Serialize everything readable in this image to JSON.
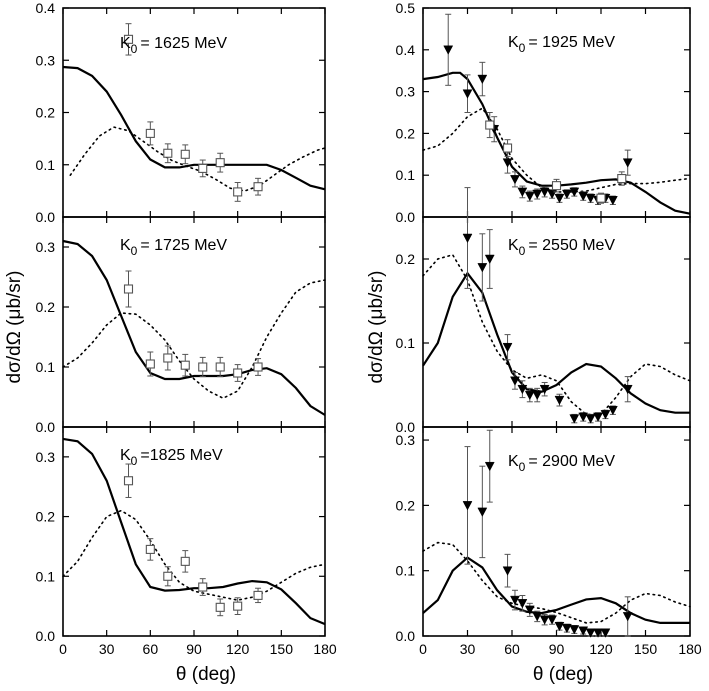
{
  "chart_data": [
    {
      "type": "scatter",
      "label": "K",
      "label_sub": "0",
      "label_value": "= 1625 MeV",
      "ylim": [
        0,
        0.4
      ],
      "yticks": [
        "0.0",
        "0.1",
        "0.2",
        "0.3",
        "0.4"
      ],
      "xlim": [
        0,
        180
      ],
      "xticks": [],
      "series": [
        {
          "name": "model (solid)",
          "style": "solid",
          "x": [
            0,
            10,
            20,
            30,
            40,
            50,
            60,
            70,
            80,
            90,
            100,
            110,
            120,
            130,
            140,
            150,
            160,
            170,
            180
          ],
          "y": [
            0.287,
            0.285,
            0.27,
            0.24,
            0.195,
            0.145,
            0.11,
            0.095,
            0.095,
            0.1,
            0.1,
            0.1,
            0.1,
            0.1,
            0.1,
            0.09,
            0.075,
            0.06,
            0.053
          ]
        },
        {
          "name": "model (dotted)",
          "style": "dotted",
          "x": [
            5,
            15,
            25,
            35,
            45,
            55,
            65,
            75,
            85,
            95,
            105,
            115,
            125,
            135,
            145,
            155,
            165,
            175,
            180
          ],
          "y": [
            0.08,
            0.12,
            0.155,
            0.172,
            0.165,
            0.145,
            0.125,
            0.108,
            0.097,
            0.087,
            0.072,
            0.055,
            0.05,
            0.06,
            0.08,
            0.1,
            0.115,
            0.128,
            0.132
          ]
        },
        {
          "name": "data (open squares)",
          "marker": "square",
          "x": [
            45,
            60,
            72,
            84,
            96,
            108,
            120,
            134
          ],
          "y": [
            0.34,
            0.16,
            0.122,
            0.12,
            0.093,
            0.104,
            0.048,
            0.058
          ],
          "err": [
            0.03,
            0.022,
            0.018,
            0.018,
            0.016,
            0.018,
            0.018,
            0.016
          ]
        }
      ]
    },
    {
      "type": "scatter",
      "label": "K",
      "label_sub": "0",
      "label_value": "= 1725 MeV",
      "ylim": [
        0,
        0.35
      ],
      "yticks": [
        "0.0",
        "0.1",
        "0.2",
        "0.3"
      ],
      "xlim": [
        0,
        180
      ],
      "xticks": [],
      "series": [
        {
          "name": "model (solid)",
          "style": "solid",
          "x": [
            0,
            10,
            20,
            30,
            40,
            50,
            60,
            70,
            80,
            90,
            100,
            110,
            120,
            130,
            140,
            150,
            160,
            170,
            180
          ],
          "y": [
            0.31,
            0.305,
            0.285,
            0.245,
            0.185,
            0.125,
            0.09,
            0.08,
            0.08,
            0.085,
            0.085,
            0.085,
            0.088,
            0.095,
            0.098,
            0.088,
            0.065,
            0.035,
            0.02
          ]
        },
        {
          "name": "model (dotted)",
          "style": "dotted",
          "x": [
            0,
            10,
            20,
            30,
            40,
            50,
            60,
            70,
            80,
            90,
            100,
            110,
            120,
            130,
            140,
            150,
            160,
            170,
            180
          ],
          "y": [
            0.1,
            0.115,
            0.14,
            0.17,
            0.19,
            0.188,
            0.17,
            0.145,
            0.11,
            0.08,
            0.06,
            0.048,
            0.06,
            0.1,
            0.15,
            0.19,
            0.225,
            0.24,
            0.245
          ]
        },
        {
          "name": "data (open squares)",
          "marker": "square",
          "x": [
            45,
            60,
            72,
            84,
            96,
            108,
            120,
            134
          ],
          "y": [
            0.23,
            0.105,
            0.115,
            0.103,
            0.1,
            0.1,
            0.09,
            0.1
          ],
          "err": [
            0.03,
            0.02,
            0.02,
            0.018,
            0.016,
            0.016,
            0.014,
            0.014
          ]
        }
      ]
    },
    {
      "type": "scatter",
      "label": "K",
      "label_sub": "0",
      "label_value": "=1825 MeV",
      "ylim": [
        0,
        0.35
      ],
      "yticks": [
        "0.0",
        "0.1",
        "0.2",
        "0.3"
      ],
      "xlim": [
        0,
        180
      ],
      "xticks": [
        "0",
        "30",
        "60",
        "90",
        "120",
        "150",
        "180"
      ],
      "series": [
        {
          "name": "model (solid)",
          "style": "solid",
          "x": [
            0,
            10,
            20,
            30,
            40,
            50,
            60,
            70,
            80,
            90,
            100,
            110,
            120,
            130,
            140,
            150,
            160,
            170,
            180
          ],
          "y": [
            0.33,
            0.326,
            0.305,
            0.26,
            0.19,
            0.12,
            0.082,
            0.076,
            0.077,
            0.08,
            0.08,
            0.082,
            0.088,
            0.092,
            0.09,
            0.078,
            0.055,
            0.03,
            0.02
          ]
        },
        {
          "name": "model (dotted)",
          "style": "dotted",
          "x": [
            0,
            10,
            20,
            30,
            40,
            50,
            60,
            70,
            80,
            90,
            100,
            110,
            120,
            130,
            140,
            150,
            160,
            170,
            180
          ],
          "y": [
            0.1,
            0.125,
            0.165,
            0.2,
            0.21,
            0.195,
            0.16,
            0.12,
            0.09,
            0.075,
            0.07,
            0.065,
            0.06,
            0.065,
            0.075,
            0.09,
            0.105,
            0.115,
            0.12
          ]
        },
        {
          "name": "data (open squares)",
          "marker": "square",
          "x": [
            45,
            60,
            72,
            84,
            96,
            108,
            120,
            134
          ],
          "y": [
            0.26,
            0.145,
            0.1,
            0.125,
            0.082,
            0.048,
            0.05,
            0.068
          ],
          "err": [
            0.028,
            0.018,
            0.016,
            0.018,
            0.014,
            0.014,
            0.014,
            0.012
          ]
        }
      ]
    },
    {
      "type": "scatter",
      "label": "K",
      "label_sub": "0",
      "label_value": "= 1925 MeV",
      "ylim": [
        0,
        0.5
      ],
      "yticks": [
        "0.0",
        "0.1",
        "0.2",
        "0.3",
        "0.4",
        "0.5"
      ],
      "xlim": [
        0,
        180
      ],
      "xticks": [],
      "series": [
        {
          "name": "model (solid)",
          "style": "solid",
          "x": [
            0,
            10,
            20,
            25,
            30,
            40,
            50,
            60,
            70,
            80,
            90,
            100,
            110,
            120,
            130,
            140,
            150,
            160,
            170,
            180
          ],
          "y": [
            0.33,
            0.335,
            0.345,
            0.345,
            0.33,
            0.27,
            0.19,
            0.12,
            0.085,
            0.075,
            0.075,
            0.078,
            0.082,
            0.088,
            0.09,
            0.082,
            0.06,
            0.035,
            0.015,
            0.008
          ]
        },
        {
          "name": "model (dotted)",
          "style": "dotted",
          "x": [
            0,
            10,
            20,
            30,
            40,
            50,
            60,
            70,
            80,
            90,
            100,
            110,
            120,
            130,
            140,
            150,
            160,
            170,
            180
          ],
          "y": [
            0.16,
            0.17,
            0.2,
            0.24,
            0.26,
            0.21,
            0.14,
            0.1,
            0.07,
            0.06,
            0.06,
            0.062,
            0.07,
            0.078,
            0.08,
            0.08,
            0.083,
            0.088,
            0.092
          ]
        },
        {
          "name": "data (filled triangles)",
          "marker": "triangle",
          "x": [
            17,
            30,
            40,
            48,
            57,
            62,
            67,
            72,
            77,
            82,
            87,
            92,
            97,
            102,
            108,
            113,
            118,
            123,
            128,
            138
          ],
          "y": [
            0.4,
            0.295,
            0.33,
            0.21,
            0.13,
            0.09,
            0.06,
            0.05,
            0.055,
            0.06,
            0.055,
            0.045,
            0.055,
            0.06,
            0.05,
            0.045,
            0.04,
            0.045,
            0.04,
            0.13
          ],
          "err": [
            0.085,
            0.045,
            0.04,
            0.03,
            0.025,
            0.018,
            0.014,
            0.012,
            0.012,
            0.012,
            0.01,
            0.01,
            0.01,
            0.01,
            0.01,
            0.01,
            0.01,
            0.01,
            0.01,
            0.03
          ]
        },
        {
          "name": "data (open squares)",
          "marker": "square",
          "x": [
            45,
            57,
            90,
            120,
            134
          ],
          "y": [
            0.22,
            0.165,
            0.075,
            0.045,
            0.092
          ],
          "err": [
            0.03,
            0.02,
            0.015,
            0.012,
            0.016
          ]
        }
      ]
    },
    {
      "type": "scatter",
      "label": "K",
      "label_sub": "0",
      "label_value": "= 2550 MeV",
      "ylim": [
        0,
        0.25
      ],
      "yticks": [
        "0.0",
        "0.1",
        "0.2"
      ],
      "xlim": [
        0,
        180
      ],
      "xticks": [],
      "series": [
        {
          "name": "model (solid)",
          "style": "solid",
          "x": [
            0,
            10,
            20,
            30,
            40,
            50,
            60,
            70,
            80,
            90,
            100,
            110,
            120,
            130,
            140,
            150,
            160,
            170,
            180
          ],
          "y": [
            0.073,
            0.1,
            0.155,
            0.183,
            0.16,
            0.11,
            0.065,
            0.045,
            0.042,
            0.05,
            0.065,
            0.075,
            0.072,
            0.058,
            0.04,
            0.028,
            0.02,
            0.017,
            0.017
          ]
        },
        {
          "name": "model (dotted)",
          "style": "dotted",
          "x": [
            0,
            10,
            20,
            30,
            40,
            50,
            60,
            70,
            80,
            90,
            100,
            110,
            120,
            130,
            140,
            150,
            160,
            170,
            180
          ],
          "y": [
            0.18,
            0.2,
            0.205,
            0.175,
            0.125,
            0.09,
            0.068,
            0.058,
            0.062,
            0.055,
            0.03,
            0.015,
            0.015,
            0.035,
            0.06,
            0.075,
            0.072,
            0.062,
            0.055
          ]
        },
        {
          "name": "data (filled triangles)",
          "marker": "triangle",
          "x": [
            30,
            40,
            45,
            57,
            62,
            67,
            72,
            77,
            82,
            92,
            102,
            108,
            113,
            118,
            123,
            128,
            138
          ],
          "y": [
            0.225,
            0.19,
            0.2,
            0.095,
            0.055,
            0.045,
            0.038,
            0.038,
            0.045,
            0.032,
            0.01,
            0.012,
            0.01,
            0.012,
            0.015,
            0.02,
            0.045
          ],
          "err": [
            0.06,
            0.04,
            0.035,
            0.015,
            0.01,
            0.01,
            0.008,
            0.008,
            0.008,
            0.007,
            0.005,
            0.005,
            0.005,
            0.005,
            0.005,
            0.005,
            0.015
          ]
        }
      ]
    },
    {
      "type": "scatter",
      "label": "K",
      "label_sub": "0",
      "label_value": "= 2900 MeV",
      "ylim": [
        0,
        0.32
      ],
      "yticks": [
        "0.0",
        "0.1",
        "0.2",
        "0.3"
      ],
      "xlim": [
        0,
        180
      ],
      "xticks": [
        "0",
        "30",
        "60",
        "90",
        "120",
        "150",
        "180"
      ],
      "series": [
        {
          "name": "model (solid)",
          "style": "solid",
          "x": [
            0,
            10,
            20,
            30,
            40,
            50,
            60,
            70,
            80,
            90,
            100,
            110,
            120,
            130,
            140,
            150,
            160,
            170,
            180
          ],
          "y": [
            0.035,
            0.055,
            0.1,
            0.12,
            0.105,
            0.07,
            0.045,
            0.037,
            0.035,
            0.04,
            0.048,
            0.056,
            0.058,
            0.05,
            0.035,
            0.025,
            0.02,
            0.02,
            0.02
          ]
        },
        {
          "name": "model (dotted)",
          "style": "dotted",
          "x": [
            0,
            10,
            20,
            30,
            40,
            50,
            60,
            70,
            80,
            90,
            100,
            110,
            120,
            130,
            140,
            150,
            160,
            170,
            180
          ],
          "y": [
            0.13,
            0.143,
            0.14,
            0.115,
            0.085,
            0.06,
            0.05,
            0.045,
            0.042,
            0.036,
            0.028,
            0.02,
            0.022,
            0.035,
            0.055,
            0.065,
            0.062,
            0.052,
            0.045
          ]
        },
        {
          "name": "data (filled triangles)",
          "marker": "triangle",
          "x": [
            30,
            40,
            45,
            57,
            62,
            67,
            72,
            77,
            82,
            87,
            92,
            97,
            102,
            108,
            113,
            118,
            123,
            138
          ],
          "y": [
            0.2,
            0.19,
            0.26,
            0.1,
            0.055,
            0.05,
            0.04,
            0.03,
            0.025,
            0.025,
            0.015,
            0.012,
            0.01,
            0.008,
            0.005,
            0.005,
            0.005,
            0.03
          ],
          "err": [
            0.09,
            0.07,
            0.055,
            0.025,
            0.015,
            0.012,
            0.01,
            0.008,
            0.008,
            0.007,
            0.006,
            0.006,
            0.006,
            0.005,
            0.005,
            0.005,
            0.005,
            0.03
          ]
        }
      ]
    }
  ],
  "axis_titles": {
    "x_left": "θ (deg)",
    "x_right": "θ (deg)",
    "y_left": "dσ/dΩ (μb/sr)",
    "y_right": "dσ/dΩ (μb/sr)"
  }
}
